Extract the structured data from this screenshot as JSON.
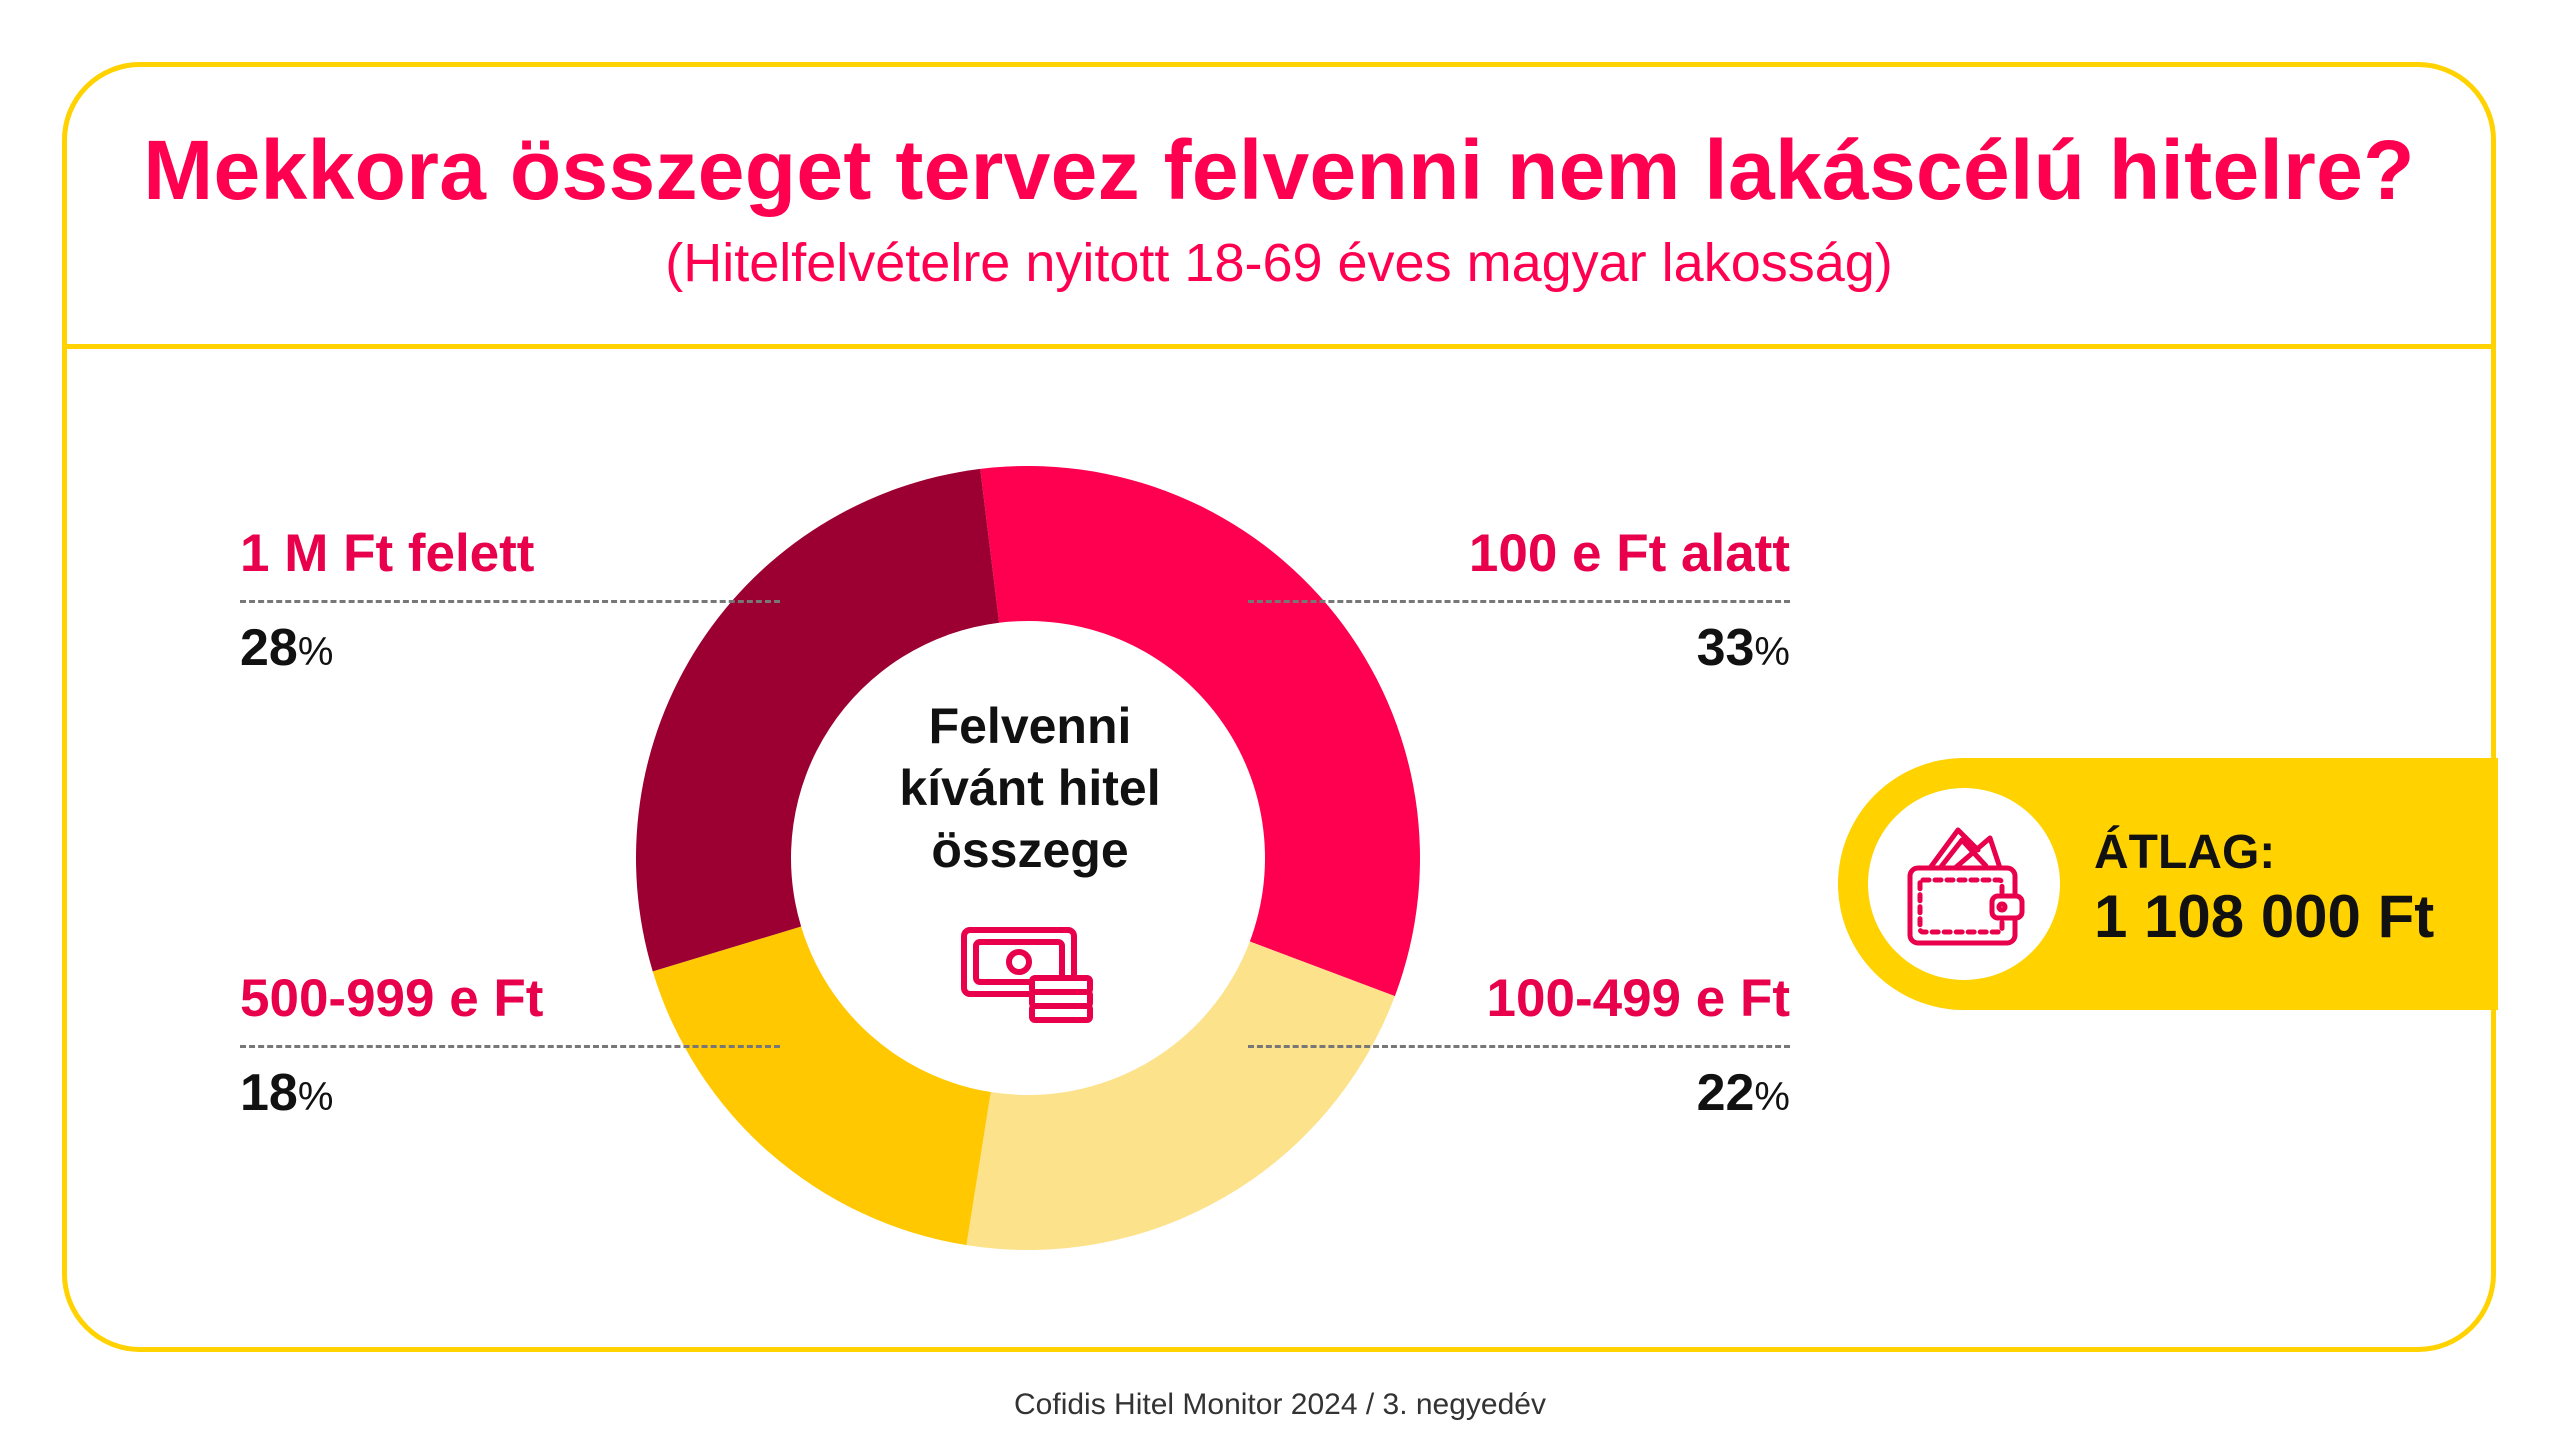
{
  "header": {
    "title": "Mekkora összeget tervez felvenni nem lakáscélú hitelre?",
    "subtitle": "(Hitelfelvételre nyitott 18-69 éves magyar lakosság)"
  },
  "center": {
    "line1": "Felvenni",
    "line2": "kívánt hitel",
    "line3": "összege",
    "icon": "money-cash-icon"
  },
  "chart_data": {
    "type": "pie",
    "style": "donut",
    "categories": [
      "100 e Ft alatt",
      "100-499 e Ft",
      "500-999 e Ft",
      "1 M Ft felett"
    ],
    "values": [
      33,
      22,
      18,
      28
    ],
    "unit": "%",
    "colors": [
      "#ff0050",
      "#fde28c",
      "#ffc800",
      "#9c0033"
    ],
    "labels": [
      {
        "name": "1 M Ft felett",
        "value": "28",
        "pct": "%"
      },
      {
        "name": "100 e Ft alatt",
        "value": "33",
        "pct": "%"
      },
      {
        "name": "500-999 e Ft",
        "value": "18",
        "pct": "%"
      },
      {
        "name": "100-499 e Ft",
        "value": "22",
        "pct": "%"
      }
    ]
  },
  "average": {
    "label": "ÁTLAG:",
    "value": "1 108 000 Ft",
    "icon": "wallet-icon"
  },
  "source": "Cofidis Hitel Monitor 2024 / 3. negyedév",
  "colors": {
    "accent": "#ff0050",
    "frame": "#ffd200"
  }
}
